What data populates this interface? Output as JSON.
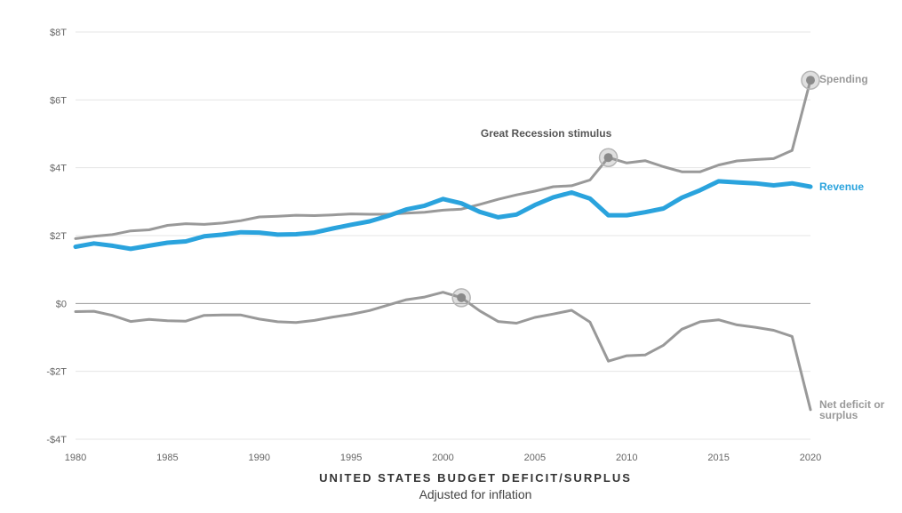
{
  "chart_data": {
    "type": "line",
    "title": "UNITED STATES BUDGET DEFICIT/SURPLUS",
    "subtitle": "Adjusted for inflation",
    "xlim": [
      1980,
      2020
    ],
    "ylim": [
      -4,
      8
    ],
    "y_ticks": [
      -4,
      -2,
      0,
      2,
      4,
      6,
      8
    ],
    "y_tick_labels": [
      "-$4T",
      "-$2T",
      "$0",
      "$2T",
      "$4T",
      "$6T",
      "$8T"
    ],
    "x_ticks": [
      1980,
      1985,
      1990,
      1995,
      2000,
      2005,
      2010,
      2015,
      2020
    ],
    "x_tick_labels": [
      "1980",
      "1985",
      "1990",
      "1995",
      "2000",
      "2005",
      "2010",
      "2015",
      "2020"
    ],
    "grid": true,
    "x": [
      1980,
      1981,
      1982,
      1983,
      1984,
      1985,
      1986,
      1987,
      1988,
      1989,
      1990,
      1991,
      1992,
      1993,
      1994,
      1995,
      1996,
      1997,
      1998,
      1999,
      2000,
      2001,
      2002,
      2003,
      2004,
      2005,
      2006,
      2007,
      2008,
      2009,
      2010,
      2011,
      2012,
      2013,
      2014,
      2015,
      2016,
      2017,
      2018,
      2019,
      2020
    ],
    "series": [
      {
        "name": "Spending",
        "color": "#999999",
        "values": [
          1.91,
          1.98,
          2.03,
          2.14,
          2.17,
          2.3,
          2.35,
          2.33,
          2.37,
          2.44,
          2.55,
          2.57,
          2.6,
          2.59,
          2.61,
          2.64,
          2.63,
          2.63,
          2.66,
          2.69,
          2.75,
          2.78,
          2.92,
          3.07,
          3.2,
          3.31,
          3.44,
          3.47,
          3.64,
          4.3,
          4.14,
          4.21,
          4.03,
          3.88,
          3.88,
          4.08,
          4.2,
          4.24,
          4.27,
          4.51,
          6.58
        ]
      },
      {
        "name": "Revenue",
        "color": "#2aa3dd",
        "values": [
          1.67,
          1.77,
          1.7,
          1.61,
          1.7,
          1.79,
          1.83,
          1.98,
          2.03,
          2.1,
          2.09,
          2.03,
          2.04,
          2.09,
          2.21,
          2.32,
          2.42,
          2.58,
          2.77,
          2.88,
          3.08,
          2.95,
          2.7,
          2.54,
          2.62,
          2.9,
          3.13,
          3.27,
          3.09,
          2.6,
          2.6,
          2.69,
          2.8,
          3.12,
          3.34,
          3.6,
          3.57,
          3.54,
          3.48,
          3.54,
          3.44
        ]
      },
      {
        "name": "Net deficit or surplus",
        "color": "#999999",
        "values": [
          -0.24,
          -0.23,
          -0.35,
          -0.53,
          -0.47,
          -0.51,
          -0.52,
          -0.35,
          -0.34,
          -0.34,
          -0.46,
          -0.54,
          -0.56,
          -0.5,
          -0.4,
          -0.32,
          -0.21,
          -0.05,
          0.11,
          0.19,
          0.33,
          0.17,
          -0.22,
          -0.53,
          -0.58,
          -0.41,
          -0.31,
          -0.2,
          -0.55,
          -1.7,
          -1.54,
          -1.52,
          -1.23,
          -0.76,
          -0.54,
          -0.48,
          -0.63,
          -0.7,
          -0.79,
          -0.97,
          -3.13
        ]
      }
    ],
    "annotations": [
      {
        "text": "Great Recession stimulus",
        "x": 2009,
        "y": 4.3,
        "series": "Spending"
      },
      {
        "text": "",
        "x": 2020,
        "y": 6.58,
        "series": "Spending"
      },
      {
        "text": "",
        "x": 2001,
        "y": 0.17,
        "series": "Net deficit or surplus"
      }
    ]
  }
}
